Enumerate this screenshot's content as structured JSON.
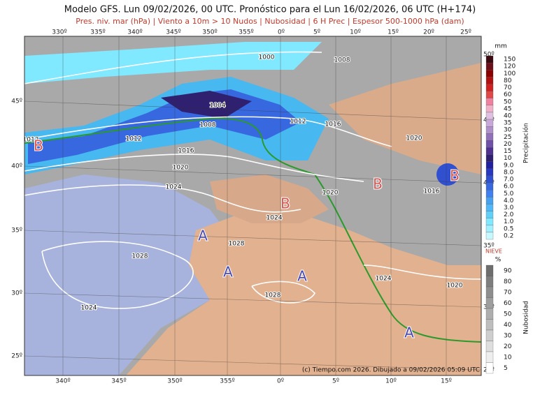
{
  "header": {
    "title": "Modelo GFS. Lun 09/02/2026, 00 UTC. Pronóstico para el Lun 16/02/2026, 06 UTC (H+174)",
    "subtitle": "Pres. niv. mar (hPa) | Viento a 10m > 10 Nudos | Nubosidad | 6 H Prec | Espesor 500-1000 hPa (dam)"
  },
  "map": {
    "top_lon_labels": [
      "330º",
      "335º",
      "340º",
      "345º",
      "350º",
      "355º",
      "0º",
      "5º",
      "10º",
      "15º",
      "20º",
      "25º"
    ],
    "bottom_lon_labels": [
      "340º",
      "345º",
      "350º",
      "355º",
      "0º",
      "5º",
      "10º",
      "15º"
    ],
    "left_lat_labels": [
      "45º",
      "40º",
      "35º",
      "30º",
      "25º"
    ],
    "right_lat_labels": [
      "50º",
      "45º",
      "40º",
      "35º",
      "30º",
      "25º"
    ],
    "pressure_labels": [
      "1000",
      "1008",
      "1004",
      "1008",
      "1012",
      "1016",
      "1012",
      "1012",
      "1016",
      "1020",
      "1024",
      "1020",
      "1016",
      "1020",
      "1024",
      "1028",
      "1028",
      "1028",
      "1024",
      "1024",
      "1020"
    ],
    "centers": [
      "B",
      "B",
      "B",
      "B",
      "A",
      "A",
      "A",
      "A"
    ],
    "credit": "(c) Tiempo.com 2026. Dibujado a 09/02/2026 05:09 UTC"
  },
  "precip_legend": {
    "unit": "mm",
    "title": "Precipitación",
    "labels": [
      "150",
      "120",
      "100",
      "80",
      "70",
      "60",
      "50",
      "45",
      "40",
      "35",
      "30",
      "25",
      "20",
      "15",
      "10",
      "9.0",
      "8.0",
      "7.0",
      "6.0",
      "5.0",
      "4.0",
      "3.0",
      "2.0",
      "1.0",
      "0.5",
      "0.2"
    ],
    "colors": [
      "#3b0a10",
      "#6b0f1a",
      "#8b0000",
      "#b01010",
      "#d02020",
      "#e04848",
      "#f080a0",
      "#f0b0c8",
      "#e0c0e0",
      "#c8a8d8",
      "#b090c8",
      "#9070b8",
      "#7050a8",
      "#503090",
      "#302070",
      "#2020a0",
      "#2838c0",
      "#3050d0",
      "#3868e0",
      "#4080f0",
      "#48a0f0",
      "#50b8f8",
      "#60d0f8",
      "#80e8ff",
      "#a0f0ff",
      "#c8f8ff"
    ]
  },
  "cloud_legend": {
    "snow": "NIEVE",
    "unit": "%",
    "title": "Nubosidad",
    "labels": [
      "90",
      "80",
      "70",
      "60",
      "50",
      "40",
      "30",
      "20",
      "10",
      "5"
    ],
    "colors": [
      "#6e6e6e",
      "#7e7e7e",
      "#8e8e8e",
      "#9e9e9e",
      "#aeaeae",
      "#bebebe",
      "#cecece",
      "#dedede",
      "#eeeeee",
      "#ffffff"
    ]
  }
}
